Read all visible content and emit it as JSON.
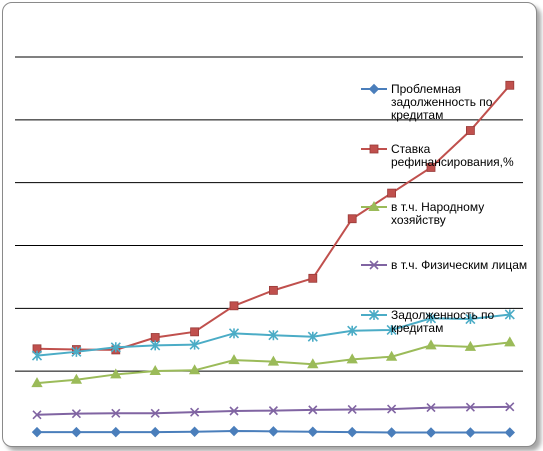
{
  "chart_data": {
    "type": "line",
    "x": [
      1,
      2,
      3,
      4,
      5,
      6,
      7,
      8,
      9,
      10,
      11,
      12,
      13
    ],
    "ylim": [
      0,
      100
    ],
    "grid": "horizontal",
    "legend_position": "right",
    "series": [
      {
        "name": "Проблемная задолженность по кредитам",
        "legend_lines": [
          "Проблемная",
          "задолженность по",
          "кредитам"
        ],
        "color": "#4a7ebb",
        "marker": "diamond",
        "values": [
          0.5,
          0.5,
          0.5,
          0.5,
          0.6,
          0.8,
          0.7,
          0.6,
          0.5,
          0.4,
          0.4,
          0.4,
          0.4
        ]
      },
      {
        "name": "Ставка рефинансирования,%",
        "legend_lines": [
          "Ставка",
          "рефинансирования,%"
        ],
        "color": "#c0504d",
        "marker": "square",
        "values": [
          22.6,
          22.4,
          22.3,
          25.6,
          27.1,
          34.0,
          38.1,
          41.3,
          57.1,
          63.9,
          70.7,
          80.5,
          92.5
        ]
      },
      {
        "name": "в т.ч. Народному хозяйству",
        "legend_lines": [
          "в т.ч. Народному",
          "хозяйству"
        ],
        "color": "#9bbb59",
        "marker": "triangle",
        "values": [
          13.5,
          14.4,
          15.8,
          16.7,
          16.9,
          19.6,
          19.2,
          18.5,
          19.8,
          20.5,
          23.5,
          23.1,
          24.3
        ]
      },
      {
        "name": "в т.ч. Физическим лицам",
        "legend_lines": [
          "в т.ч. Физическим лицам"
        ],
        "color": "#8064a2",
        "marker": "x",
        "values": [
          5.1,
          5.4,
          5.5,
          5.5,
          5.8,
          6.1,
          6.2,
          6.4,
          6.5,
          6.6,
          7.0,
          7.1,
          7.2
        ]
      },
      {
        "name": "Задолженность по кредитам",
        "legend_lines": [
          "Задолженность по",
          "кредитам"
        ],
        "color": "#4bacc6",
        "marker": "asterisk",
        "values": [
          20.8,
          21.8,
          23.0,
          23.5,
          23.7,
          26.7,
          26.2,
          25.8,
          27.4,
          27.6,
          30.7,
          30.5,
          31.7
        ]
      }
    ]
  }
}
